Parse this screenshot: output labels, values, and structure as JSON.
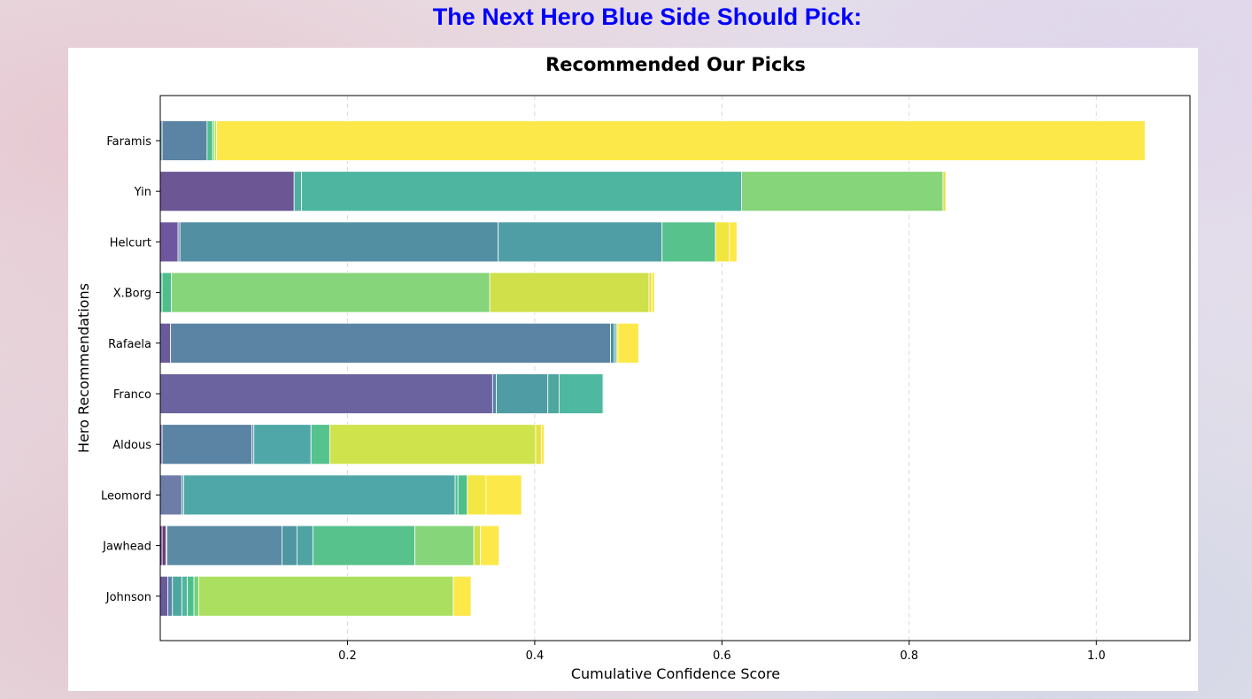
{
  "page": {
    "heading": "The Next Hero Blue Side Should Pick:"
  },
  "chart_data": {
    "type": "bar",
    "orientation": "horizontal",
    "stacked": true,
    "title": "Recommended Our Picks",
    "xlabel": "Cumulative Confidence Score",
    "ylabel": "Hero Recommendations",
    "xlim": [
      0,
      1.1
    ],
    "xticks": [
      0.2,
      0.4,
      0.6,
      0.8,
      1.0
    ],
    "grid": "x-dashed",
    "colormap": "viridis",
    "categories": [
      "Faramis",
      "Yin",
      "Helcurt",
      "X.Borg",
      "Rafaela",
      "Franco",
      "Aldous",
      "Leomord",
      "Jawhead",
      "Johnson"
    ],
    "segments": [
      [
        0.002,
        0.048,
        0.006,
        0.002,
        0.002,
        0.992
      ],
      [
        0.143,
        0.008,
        0.47,
        0.215,
        0.003
      ],
      [
        0.019,
        0.002,
        0.34,
        0.175,
        0.057,
        0.015,
        0.008
      ],
      [
        0.002,
        0.01,
        0.34,
        0.17,
        0.003,
        0.003
      ],
      [
        0.011,
        0.47,
        0.004,
        0.002,
        0.002,
        0.022
      ],
      [
        0.355,
        0.004,
        0.055,
        0.012,
        0.047,
        0.001
      ],
      [
        0.002,
        0.096,
        0.002,
        0.061,
        0.02,
        0.22,
        0.006,
        0.003
      ],
      [
        0.023,
        0.002,
        0.29,
        0.003,
        0.01,
        0.02,
        0.038
      ],
      [
        0.002,
        0.004,
        0.001,
        0.123,
        0.016,
        0.017,
        0.109,
        0.063,
        0.007,
        0.02
      ],
      [
        0.008,
        0.005,
        0.01,
        0.006,
        0.007,
        0.005,
        0.272,
        0.019
      ]
    ],
    "segment_colors": [
      [
        "#5b84a4",
        "#5b84a4",
        "#4fbf8a",
        "#86d57a",
        "#bde04a",
        "#fde84a"
      ],
      [
        "#6c5694",
        "#4fb0a0",
        "#4db5a0",
        "#86d57a",
        "#e0e040"
      ],
      [
        "#6f57a0",
        "#5a7aa2",
        "#528fa3",
        "#4f9ea5",
        "#57c28c",
        "#f2e63e",
        "#fde84a"
      ],
      [
        "#4fb69b",
        "#4fbf8a",
        "#86d57a",
        "#cfe04a",
        "#e6e042",
        "#fde84a"
      ],
      [
        "#6b5b9c",
        "#5b84a4",
        "#4f8ea5",
        "#4fa6a2",
        "#dfe045",
        "#fde84a"
      ],
      [
        "#6b63a0",
        "#5a80a2",
        "#4f9ca4",
        "#4fa8a0",
        "#4fb8a0",
        "#86d57a"
      ],
      [
        "#6b5a9c",
        "#5b84a4",
        "#5b84a4",
        "#4fa8a7",
        "#56c28e",
        "#cfe44c",
        "#e8e042",
        "#fde84a"
      ],
      [
        "#6d7da8",
        "#4fa6a0",
        "#4fa8a7",
        "#4fb8a0",
        "#4fbf8a",
        "#f4e743",
        "#fde84a"
      ],
      [
        "#4a2b6e",
        "#6c3a7c",
        "#5080a0",
        "#5b8aa4",
        "#4f96a3",
        "#4ea4a3",
        "#57c28c",
        "#86d57a",
        "#cfe04a",
        "#fde84a"
      ],
      [
        "#6b5a9c",
        "#5b84a4",
        "#4fa6a0",
        "#4fb6a0",
        "#4fbf8a",
        "#74d07c",
        "#aadf60",
        "#fde84a"
      ]
    ],
    "totals": [
      1.052,
      0.839,
      0.616,
      0.528,
      0.511,
      0.474,
      0.41,
      0.386,
      0.362,
      0.332
    ]
  }
}
